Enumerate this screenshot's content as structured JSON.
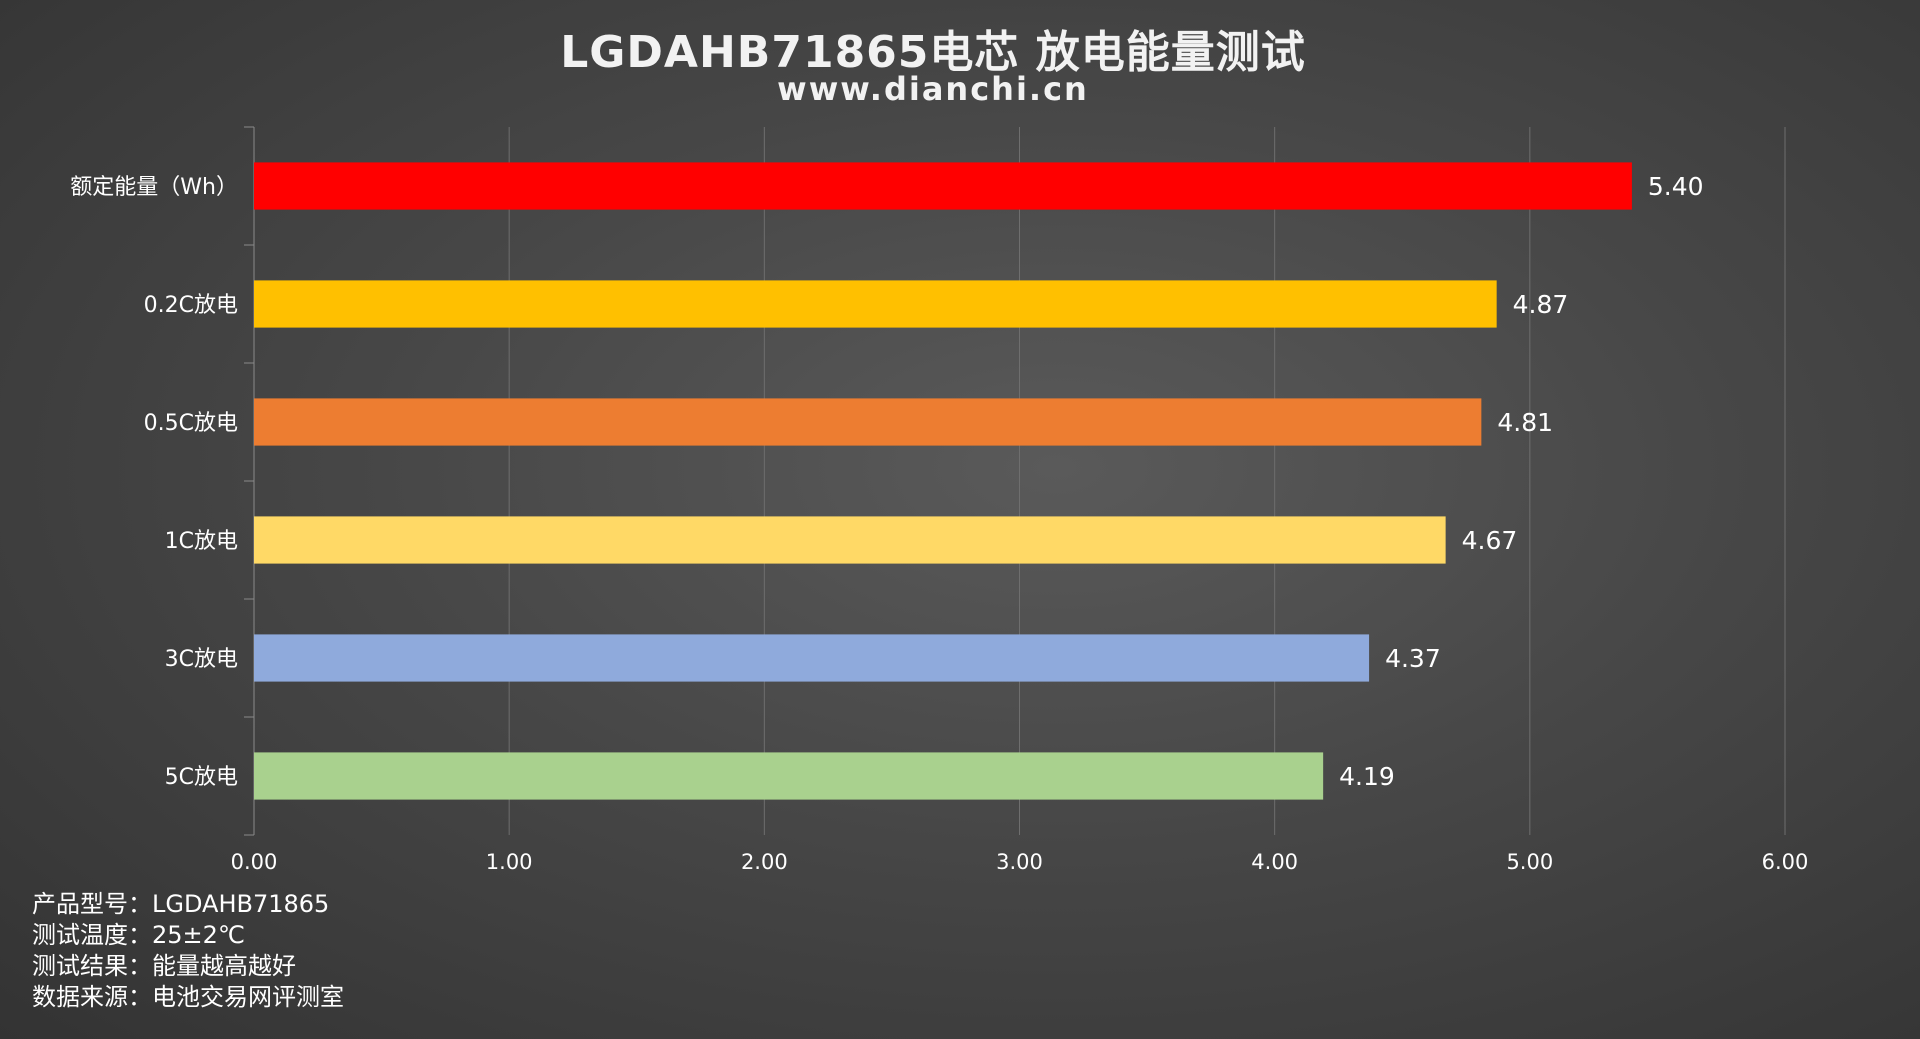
{
  "chart_data": {
    "type": "bar",
    "orientation": "horizontal",
    "title": "LGDAHB71865电芯 放电能量测试",
    "subtitle": "www.dianchi.cn",
    "categories": [
      "额定能量（Wh）",
      "0.2C放电",
      "0.5C放电",
      "1C放电",
      "3C放电",
      "5C放电"
    ],
    "values": [
      5.4,
      4.87,
      4.81,
      4.67,
      4.37,
      4.19
    ],
    "data_labels": [
      "5.40",
      "4.87",
      "4.81",
      "4.67",
      "4.37",
      "4.19"
    ],
    "colors": [
      "#ff0000",
      "#ffc000",
      "#ed7d31",
      "#ffd966",
      "#8faadc",
      "#a9d18e"
    ],
    "xlim": [
      0,
      6
    ],
    "xticks": [
      0,
      1,
      2,
      3,
      4,
      5,
      6
    ],
    "xtick_labels": [
      "0.00",
      "1.00",
      "2.00",
      "3.00",
      "4.00",
      "5.00",
      "6.00"
    ],
    "grid": "vertical",
    "legend": "none"
  },
  "notes": [
    {
      "label": "产品型号：",
      "value": "LGDAHB71865"
    },
    {
      "label": "测试温度：",
      "value": "25±2℃"
    },
    {
      "label": "测试结果：",
      "value": "能量越高越好"
    },
    {
      "label": "数据来源：",
      "value": "电池交易网评测室"
    }
  ]
}
